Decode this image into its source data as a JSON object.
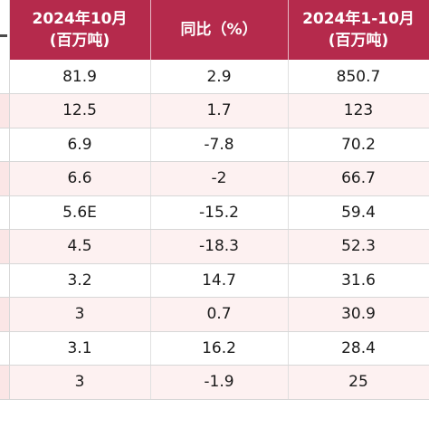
{
  "header": {
    "col_month_line1": "2024年10月",
    "col_month_line2": "(百万吨)",
    "col_yoy": "同比（%）",
    "col_ytd_line1": "2024年1-10月",
    "col_ytd_line2": "(百万吨)"
  },
  "rows": [
    {
      "month": "81.9",
      "yoy": "2.9",
      "ytd": "850.7"
    },
    {
      "month": "12.5",
      "yoy": "1.7",
      "ytd": "123"
    },
    {
      "month": "6.9",
      "yoy": "-7.8",
      "ytd": "70.2"
    },
    {
      "month": "6.6",
      "yoy": "-2",
      "ytd": "66.7"
    },
    {
      "month": "5.6E",
      "yoy": "-15.2",
      "ytd": "59.4"
    },
    {
      "month": "4.5",
      "yoy": "-18.3",
      "ytd": "52.3"
    },
    {
      "month": "3.2",
      "yoy": "14.7",
      "ytd": "31.6"
    },
    {
      "month": "3",
      "yoy": "0.7",
      "ytd": "30.9"
    },
    {
      "month": "3.1",
      "yoy": "16.2",
      "ytd": "28.4"
    },
    {
      "month": "3",
      "yoy": "-1.9",
      "ytd": "25"
    }
  ],
  "colors": {
    "header_bg": "#b52a4c",
    "header_text": "#ffffff",
    "alt_row_bg": "#fdf1f1"
  }
}
